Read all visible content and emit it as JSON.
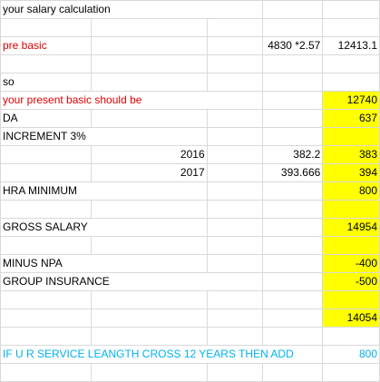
{
  "cells": {
    "title": "your salary calculation",
    "pre_basic_label": "pre basic",
    "pre_basic_value": "4830 *2.57",
    "pre_basic_result": "12413.1",
    "so": "so",
    "present_basic_label": "your present    basic should be",
    "present_basic_value": "12740",
    "da_label": "DA",
    "da_value": "637",
    "increment_label": "INCREMENT 3%",
    "year_2016": "2016",
    "inc_2016_calc": "382.2",
    "inc_2016_value": "383",
    "year_2017": "2017",
    "inc_2017_calc": "393.666",
    "inc_2017_value": "394",
    "hra_label": "HRA MINIMUM",
    "hra_value": "800",
    "gross_label": "GROSS SALARY",
    "gross_value": "14954",
    "npa_label": "MINUS NPA",
    "npa_value": "-400",
    "gi_label": "GROUP INSURANCE",
    "gi_value": "-500",
    "net_value": "14054",
    "service_note": "IF U R SERVICE LEANGTH CROSS 12 YEARS THEN ADD",
    "service_add_value": "800"
  },
  "colors": {
    "highlight": "#ffff00",
    "red_text": "#e00000",
    "blue_text": "#00b0f0",
    "gridline": "#d9d9d9"
  }
}
